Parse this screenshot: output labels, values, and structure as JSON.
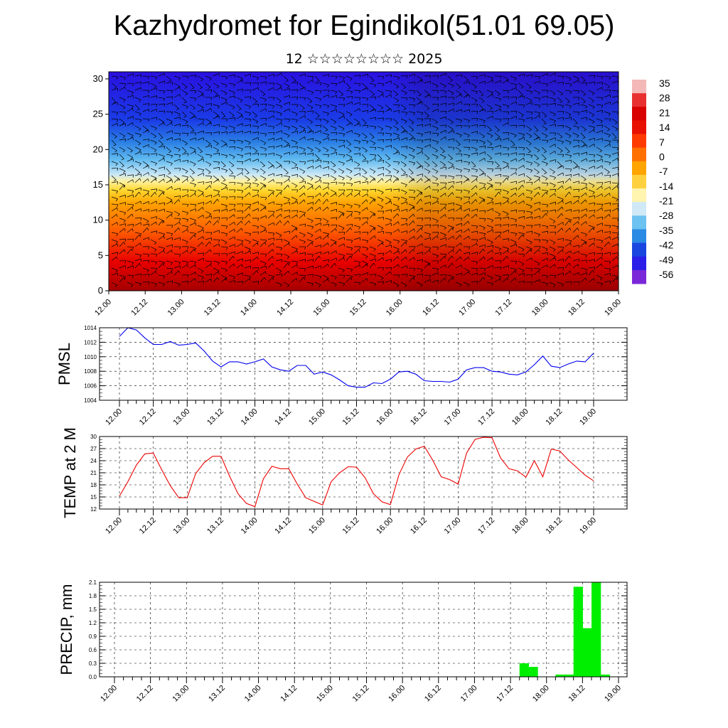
{
  "page": {
    "title": "Kazhydromet for Egindikol(51.01 69.05)",
    "subtitle": "12 ☆☆☆☆☆☆☆☆ 2025"
  },
  "colors": {
    "pmsl_line": "#0000ee",
    "temp_line": "#ee0000",
    "precip_bar": "#00ee00",
    "colorbar": [
      "#7a1010",
      "#b40000",
      "#e00000",
      "#ff3000",
      "#ff6a00",
      "#ff9a00",
      "#ffc400",
      "#ffee70",
      "#d8eef8",
      "#7ccbf2",
      "#30a0ea",
      "#1a62d8",
      "#1a22e6",
      "#4a10d8",
      "#7a20c8"
    ]
  },
  "chart_data": [
    {
      "type": "heatmap",
      "title": "",
      "x_tick_labels": [
        "12.00",
        "12.12",
        "13.00",
        "13.12",
        "14.00",
        "14.12",
        "15.00",
        "15.12",
        "16.00",
        "16.12",
        "17.00",
        "17.12",
        "18.00",
        "18.12",
        "19.00"
      ],
      "y_tick_labels": [
        "0",
        "5",
        "10",
        "15",
        "20",
        "25",
        "30"
      ],
      "ylim": [
        0,
        31
      ],
      "colorbar_labels": [
        "35",
        "28",
        "21",
        "14",
        "7",
        "0",
        "-7",
        "-14",
        "-21",
        "-28",
        "-35",
        "-42",
        "-49",
        "-56"
      ],
      "vrange": [
        -60,
        38
      ],
      "notes": "temperature field with wind barbs",
      "grid": false
    },
    {
      "type": "line",
      "ylabel": "PMSL",
      "x_tick_labels": [
        "12.00",
        "12.12",
        "13.00",
        "13.12",
        "14.00",
        "14.12",
        "15.00",
        "15.12",
        "16.00",
        "16.12",
        "17.00",
        "17.12",
        "18.00",
        "18.12",
        "19.00"
      ],
      "y_tick_labels": [
        "1004",
        "1006",
        "1008",
        "1010",
        "1012",
        "1014"
      ],
      "ylim": [
        1004,
        1014
      ],
      "grid": true,
      "series": [
        {
          "values": [
            1012.8,
            1014.0,
            1013.7,
            1012.6,
            1011.7,
            1011.7,
            1012.1,
            1011.6,
            1011.7,
            1011.9,
            1010.8,
            1009.4,
            1008.6,
            1009.3,
            1009.3,
            1009.0,
            1009.3,
            1009.7,
            1008.6,
            1008.2,
            1008.0,
            1008.8,
            1008.8,
            1007.6,
            1007.9,
            1007.5,
            1006.8,
            1006.0,
            1005.8,
            1005.8,
            1006.4,
            1006.3,
            1006.9,
            1007.9,
            1008.0,
            1007.6,
            1006.7,
            1006.6,
            1006.6,
            1006.5,
            1006.9,
            1008.2,
            1008.5,
            1008.5,
            1008.0,
            1007.9,
            1007.6,
            1007.5,
            1007.9,
            1008.9,
            1010.1,
            1008.7,
            1008.5,
            1009.0,
            1009.4,
            1009.3,
            1010.5
          ]
        }
      ]
    },
    {
      "type": "line",
      "ylabel": "TEMP at 2 M",
      "x_tick_labels": [
        "12.00",
        "12.12",
        "13.00",
        "13.12",
        "14.00",
        "14.12",
        "15.00",
        "15.12",
        "16.00",
        "16.12",
        "17.00",
        "17.12",
        "18.00",
        "18.12",
        "19.00"
      ],
      "y_tick_labels": [
        "12",
        "15",
        "18",
        "21",
        "24",
        "27",
        "30"
      ],
      "ylim": [
        12,
        30
      ],
      "grid": true,
      "series": [
        {
          "values": [
            15.2,
            18.8,
            22.9,
            25.7,
            25.9,
            21.7,
            17.8,
            14.8,
            14.8,
            20.8,
            23.5,
            25.1,
            25.1,
            20.2,
            15.8,
            13.4,
            12.6,
            19.5,
            22.6,
            22.0,
            22.0,
            18.2,
            14.8,
            13.9,
            13.0,
            18.8,
            21.0,
            22.5,
            22.4,
            19.8,
            15.8,
            13.8,
            13.1,
            20.5,
            24.9,
            26.9,
            27.6,
            24.1,
            20.0,
            19.3,
            18.2,
            25.9,
            29.3,
            29.8,
            29.7,
            24.7,
            22.0,
            21.5,
            19.9,
            24.0,
            20.0,
            26.9,
            26.4,
            24.2,
            22.3,
            20.4,
            19.0
          ]
        }
      ]
    },
    {
      "type": "bar",
      "ylabel": "PRECIP, mm",
      "x_tick_labels": [
        "12.00",
        "12.12",
        "13.00",
        "13.12",
        "14.00",
        "14.12",
        "15.00",
        "15.12",
        "16.00",
        "16.12",
        "17.00",
        "17.12",
        "18.00",
        "18.12",
        "19.00"
      ],
      "y_tick_labels": [
        "0.0",
        "0.3",
        "0.6",
        "0.9",
        "1.2",
        "1.5",
        "1.8",
        "2.1"
      ],
      "ylim": [
        0,
        2.1
      ],
      "grid": true,
      "values": [
        0,
        0,
        0,
        0,
        0,
        0,
        0,
        0,
        0,
        0,
        0,
        0,
        0,
        0,
        0,
        0,
        0,
        0,
        0,
        0,
        0,
        0,
        0,
        0,
        0,
        0,
        0,
        0,
        0,
        0,
        0,
        0,
        0,
        0,
        0,
        0,
        0,
        0,
        0,
        0,
        0,
        0,
        0,
        0,
        0,
        0.3,
        0.22,
        0,
        0,
        0.05,
        0.05,
        2.0,
        1.08,
        2.1,
        0.05,
        0,
        0
      ]
    }
  ]
}
